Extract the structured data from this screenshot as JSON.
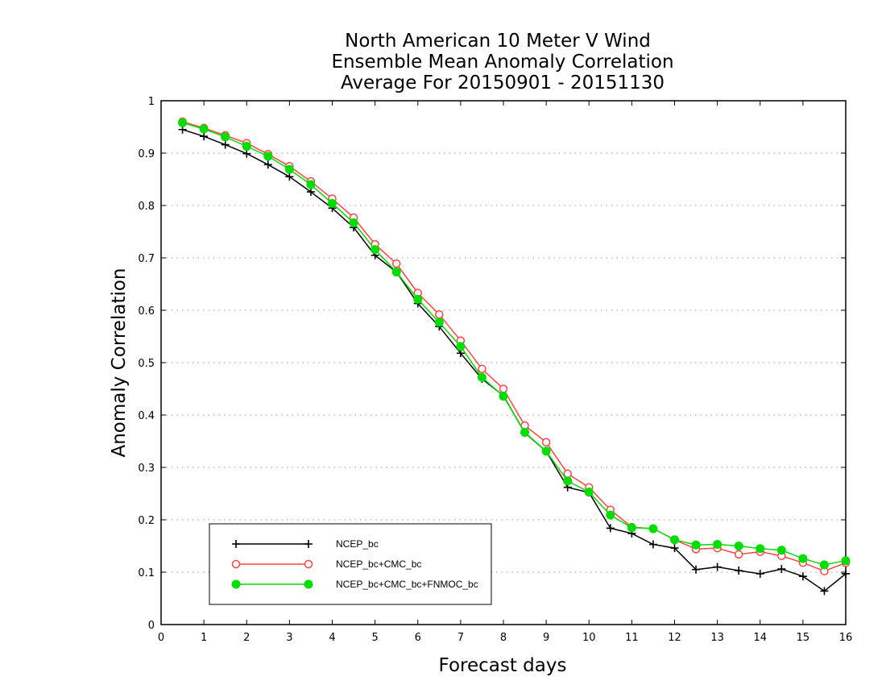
{
  "chart_data": {
    "type": "line",
    "title_lines": [
      "North American 10 Meter V Wind",
      "Ensemble Mean Anomaly Correlation",
      "Average For 20150901 - 20151130"
    ],
    "xlabel": "Forecast days",
    "ylabel": "Anomaly Correlation",
    "xlim": [
      0,
      16
    ],
    "ylim": [
      0,
      1
    ],
    "xticks": [
      "0",
      "1",
      "2",
      "3",
      "4",
      "5",
      "6",
      "7",
      "8",
      "9",
      "10",
      "11",
      "12",
      "13",
      "14",
      "15",
      "16"
    ],
    "yticks": [
      "0",
      "0.1",
      "0.2",
      "0.3",
      "0.4",
      "0.5",
      "0.6",
      "0.7",
      "0.8",
      "0.9",
      "1"
    ],
    "grid": "horizontal dotted",
    "legend_position": "bottom-left",
    "x": [
      0.5,
      1,
      1.5,
      2,
      2.5,
      3,
      3.5,
      4,
      4.5,
      5,
      5.5,
      6,
      6.5,
      7,
      7.5,
      8,
      8.5,
      9,
      9.5,
      10,
      10.5,
      11,
      11.5,
      12,
      12.5,
      13,
      13.5,
      14,
      14.5,
      15,
      15.5,
      16
    ],
    "series": [
      {
        "name": "NCEP_bc",
        "color": "#000000",
        "marker": "plus",
        "values": [
          0.945,
          0.932,
          0.916,
          0.899,
          0.878,
          0.855,
          0.826,
          0.795,
          0.758,
          0.705,
          0.673,
          0.613,
          0.569,
          0.518,
          0.469,
          0.437,
          0.366,
          0.331,
          0.262,
          0.252,
          0.184,
          0.174,
          0.153,
          0.146,
          0.105,
          0.11,
          0.103,
          0.097,
          0.106,
          0.092,
          0.064,
          0.097
        ]
      },
      {
        "name": "NCEP_bc+CMC_bc",
        "color": "#ff4444",
        "marker": "open-circle",
        "values": [
          0.96,
          0.948,
          0.934,
          0.919,
          0.898,
          0.875,
          0.846,
          0.813,
          0.777,
          0.726,
          0.689,
          0.633,
          0.592,
          0.542,
          0.488,
          0.45,
          0.38,
          0.348,
          0.288,
          0.262,
          0.219,
          0.186,
          0.183,
          0.162,
          0.144,
          0.146,
          0.134,
          0.139,
          0.131,
          0.118,
          0.102,
          0.118
        ]
      },
      {
        "name": "NCEP_bc+CMC_bc+FNMOC_bc",
        "color": "#00dd00",
        "marker": "filled-circle",
        "values": [
          0.958,
          0.946,
          0.931,
          0.913,
          0.894,
          0.869,
          0.84,
          0.804,
          0.767,
          0.716,
          0.673,
          0.621,
          0.577,
          0.531,
          0.472,
          0.436,
          0.367,
          0.331,
          0.274,
          0.253,
          0.209,
          0.185,
          0.183,
          0.162,
          0.152,
          0.153,
          0.15,
          0.145,
          0.142,
          0.126,
          0.114,
          0.122
        ]
      }
    ]
  }
}
